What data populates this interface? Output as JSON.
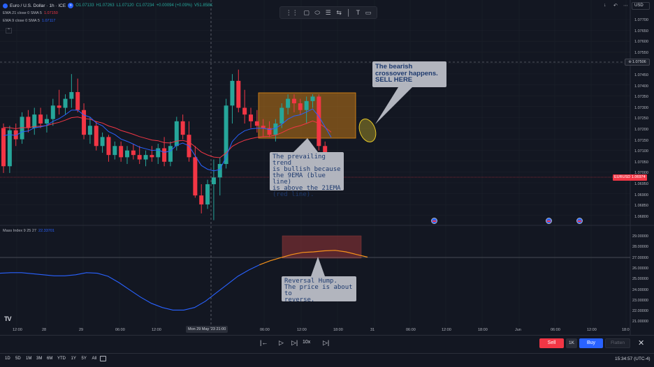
{
  "header": {
    "symbol": "Euro / U.S. Dollar · 1h · ICE",
    "open": "O1.07133",
    "high": "H1.07263",
    "low": "L1.07120",
    "close": "C1.07234",
    "change": "+0.00094 (+0.09%)",
    "volume": "V51.858K"
  },
  "indicators": [
    {
      "label": "EMA 21 close 0 SMA 5",
      "value": "1.07150",
      "color": "#f23645"
    },
    {
      "label": "EMA 9 close 0 SMA 5",
      "value": "1.07117",
      "color": "#2962ff"
    }
  ],
  "top_right": {
    "currency": "USD"
  },
  "price_axis": {
    "labels": [
      "1.07700",
      "1.07650",
      "1.07600",
      "1.07550",
      "1.07450",
      "1.07400",
      "1.07350",
      "1.07300",
      "1.07250",
      "1.07200",
      "1.07150",
      "1.07100",
      "1.07050",
      "1.07000",
      "1.06950",
      "1.06900",
      "1.06850",
      "1.06800"
    ],
    "crosshair_price": "1.07506",
    "last_price_tag": "EURUSD  1.06974"
  },
  "mass_index": {
    "legend": "Mass Index 9 25 27",
    "value": "22.33701",
    "axis_labels": [
      "29.00000",
      "28.00000",
      "27.00000",
      "26.00000",
      "25.00000",
      "24.00000",
      "23.00000",
      "22.00000",
      "21.00000"
    ]
  },
  "time_axis": {
    "labels": [
      {
        "t": "12:00",
        "x": 24
      },
      {
        "t": "28",
        "x": 66
      },
      {
        "t": "29",
        "x": 119
      },
      {
        "t": "06:00",
        "x": 171
      },
      {
        "t": "12:00",
        "x": 223
      },
      {
        "t": "06:00",
        "x": 378
      },
      {
        "t": "12:00",
        "x": 431
      },
      {
        "t": "18:00",
        "x": 483
      },
      {
        "t": "31",
        "x": 536
      },
      {
        "t": "06:00",
        "x": 587
      },
      {
        "t": "12:00",
        "x": 638
      },
      {
        "t": "18:00",
        "x": 690
      },
      {
        "t": "Jun",
        "x": 743
      },
      {
        "t": "06:00",
        "x": 794
      },
      {
        "t": "12:00",
        "x": 846
      },
      {
        "t": "18:0",
        "x": 896
      }
    ],
    "crosshair_time": "Mon 29 May '23   21:00"
  },
  "annotations": {
    "bearish": "The bearish\ncrossover happens.\nSELL HERE",
    "trend": "The prevailing trend\nis bullish because\nthe 9EMA (blue line)\nis above the 21EMA\n(red line).",
    "reversal": "Reversal Hump.\nThe price is about to\nreverse."
  },
  "replay": {
    "speed": "10x"
  },
  "trade": {
    "sell": "Sell",
    "qty": "1K",
    "buy": "Buy",
    "flatten": "Flatten"
  },
  "footer": {
    "ranges": [
      "1D",
      "5D",
      "1M",
      "3M",
      "6M",
      "YTD",
      "1Y",
      "5Y",
      "All"
    ],
    "clock": "15:34:57 (UTC-4)"
  },
  "chart_data": [
    {
      "type": "candlestick",
      "title": "Euro / U.S. Dollar · 1h · ICE",
      "ylim": [
        1.0677,
        1.0772
      ],
      "candles": [
        [
          1.072,
          1.0722,
          1.07,
          1.0703
        ],
        [
          1.0703,
          1.0721,
          1.07,
          1.0719
        ],
        [
          1.0719,
          1.0722,
          1.0712,
          1.0715
        ],
        [
          1.0715,
          1.0727,
          1.0713,
          1.0725
        ],
        [
          1.0725,
          1.0728,
          1.0718,
          1.072
        ],
        [
          1.072,
          1.0729,
          1.0717,
          1.0726
        ],
        [
          1.0726,
          1.0729,
          1.072,
          1.0722
        ],
        [
          1.0722,
          1.0726,
          1.0718,
          1.0724
        ],
        [
          1.0724,
          1.0733,
          1.0721,
          1.073
        ],
        [
          1.073,
          1.0737,
          1.0726,
          1.0729
        ],
        [
          1.0729,
          1.0735,
          1.0726,
          1.0733
        ],
        [
          1.0733,
          1.0744,
          1.0729,
          1.0736
        ],
        [
          1.0736,
          1.0742,
          1.0727,
          1.0728
        ],
        [
          1.0728,
          1.0731,
          1.0715,
          1.0717
        ],
        [
          1.0717,
          1.0725,
          1.0713,
          1.0721
        ],
        [
          1.0721,
          1.0723,
          1.071,
          1.0712
        ],
        [
          1.0712,
          1.0718,
          1.0709,
          1.0716
        ],
        [
          1.0716,
          1.0717,
          1.0705,
          1.0708
        ],
        [
          1.0708,
          1.0714,
          1.0706,
          1.0712
        ],
        [
          1.0712,
          1.0714,
          1.0705,
          1.0707
        ],
        [
          1.0707,
          1.0712,
          1.0704,
          1.071
        ],
        [
          1.071,
          1.0713,
          1.0706,
          1.0708
        ],
        [
          1.0708,
          1.0712,
          1.0704,
          1.0706
        ],
        [
          1.0706,
          1.071,
          1.0703,
          1.0708
        ],
        [
          1.0708,
          1.0712,
          1.0705,
          1.0707
        ],
        [
          1.0707,
          1.0713,
          1.0704,
          1.0711
        ],
        [
          1.0711,
          1.0716,
          1.0703,
          1.0705
        ],
        [
          1.0705,
          1.0714,
          1.0703,
          1.0712
        ],
        [
          1.0712,
          1.0725,
          1.071,
          1.0723
        ],
        [
          1.0723,
          1.0726,
          1.0715,
          1.0717
        ],
        [
          1.0717,
          1.0723,
          1.0705,
          1.0707
        ],
        [
          1.0707,
          1.0712,
          1.0689,
          1.069
        ],
        [
          1.069,
          1.0695,
          1.0682,
          1.0686
        ],
        [
          1.0686,
          1.0697,
          1.0684,
          1.0695
        ],
        [
          1.0695,
          1.0706,
          1.0679,
          1.0698
        ],
        [
          1.0698,
          1.0707,
          1.069,
          1.0704
        ],
        [
          1.0704,
          1.0733,
          1.0702,
          1.073
        ],
        [
          1.073,
          1.0744,
          1.0722,
          1.0741
        ],
        [
          1.0741,
          1.0746,
          1.0727,
          1.0729
        ],
        [
          1.0729,
          1.0737,
          1.0722,
          1.0726
        ],
        [
          1.0726,
          1.0729,
          1.072,
          1.0723
        ],
        [
          1.0723,
          1.0728,
          1.0718,
          1.0721
        ],
        [
          1.0721,
          1.0724,
          1.0716,
          1.072
        ],
        [
          1.072,
          1.0723,
          1.0716,
          1.0717
        ],
        [
          1.0717,
          1.0724,
          1.0714,
          1.0722
        ],
        [
          1.0722,
          1.0731,
          1.072,
          1.0729
        ],
        [
          1.0729,
          1.0735,
          1.0726,
          1.0733
        ],
        [
          1.0733,
          1.0735,
          1.0727,
          1.0731
        ],
        [
          1.0731,
          1.0733,
          1.0726,
          1.0728
        ],
        [
          1.0728,
          1.0734,
          1.0722,
          1.0732
        ],
        [
          1.0732,
          1.0735,
          1.0729,
          1.0734
        ],
        [
          1.0734,
          1.0735,
          1.071,
          1.0712
        ],
        [
          1.0712,
          1.0714,
          1.07,
          1.0702
        ],
        [
          1.0702,
          1.0703,
          1.0694,
          1.0697
        ]
      ]
    },
    {
      "type": "line",
      "title": "Mass Index 9 25 27",
      "ylim": [
        20.5,
        29.5
      ],
      "series": [
        {
          "name": "Mass Index",
          "values": [
            25.5,
            25.55,
            25.55,
            25.45,
            25.35,
            25.25,
            25.25,
            25.35,
            25.55,
            25.5,
            25.2,
            24.6,
            23.9,
            23.2,
            22.6,
            22.2,
            21.95,
            21.95,
            22.2,
            22.8,
            23.6,
            24.4,
            25.2,
            25.8,
            26.3,
            26.7,
            27.0,
            27.3,
            27.5,
            27.55,
            27.65,
            27.7,
            27.55,
            27.3,
            27.05
          ]
        }
      ]
    }
  ]
}
